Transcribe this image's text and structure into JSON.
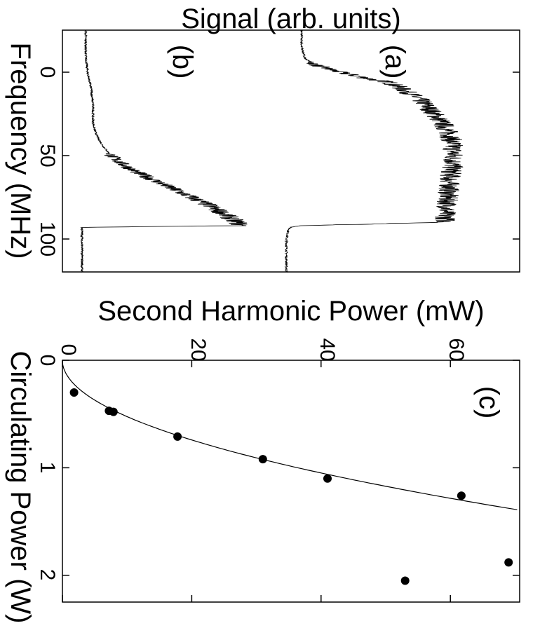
{
  "chart_data": [
    {
      "type": "line",
      "panel_label_a": "(a)",
      "panel_label_b": "(b)",
      "xlabel": "Frequency (MHz)",
      "ylabel": "Signal (arb. units)",
      "xlim": [
        -25,
        120
      ],
      "x_ticks": [
        "0",
        "50",
        "100"
      ],
      "y_ticks_shown": false,
      "series": [
        {
          "label": "(a)",
          "x": [
            -25,
            -15,
            -8,
            -4,
            0,
            2,
            4,
            6,
            8,
            12,
            16,
            20,
            25,
            30,
            35,
            40,
            45,
            50,
            55,
            60,
            65,
            70,
            75,
            80,
            85,
            90,
            92,
            93,
            95,
            100,
            110,
            120
          ],
          "y": [
            0.1,
            0.1,
            0.12,
            0.18,
            0.3,
            0.38,
            0.46,
            0.56,
            0.6,
            0.66,
            0.72,
            0.76,
            0.8,
            0.84,
            0.87,
            0.89,
            0.9,
            0.9,
            0.9,
            0.89,
            0.88,
            0.88,
            0.87,
            0.87,
            0.86,
            0.86,
            0.1,
            0.04,
            0.03,
            0.02,
            0.02,
            0.02
          ]
        },
        {
          "label": "(b)",
          "x": [
            -25,
            -10,
            0,
            10,
            20,
            30,
            35,
            40,
            45,
            50,
            55,
            60,
            65,
            70,
            75,
            80,
            85,
            90,
            92,
            93,
            95,
            100,
            110,
            120
          ],
          "y": [
            0.02,
            0.02,
            0.03,
            0.05,
            0.06,
            0.06,
            0.07,
            0.09,
            0.12,
            0.16,
            0.22,
            0.3,
            0.4,
            0.5,
            0.6,
            0.7,
            0.78,
            0.85,
            0.87,
            0.0,
            0.0,
            0.0,
            0.0,
            0.0
          ]
        }
      ]
    },
    {
      "type": "scatter",
      "panel_label": "(c)",
      "xlabel": "Circulating Power (W)",
      "ylabel": "Second Harmonic Power (mW)",
      "xlim": [
        0,
        2.2
      ],
      "ylim": [
        0,
        70
      ],
      "x_ticks": [
        "0",
        "1",
        "2"
      ],
      "y_ticks": [
        "0",
        "20",
        "40",
        "60"
      ],
      "points": [
        {
          "x": 0.3,
          "y": 1.8
        },
        {
          "x": 0.47,
          "y": 7.2
        },
        {
          "x": 0.48,
          "y": 7.9
        },
        {
          "x": 0.71,
          "y": 17.8
        },
        {
          "x": 0.92,
          "y": 31.0
        },
        {
          "x": 1.1,
          "y": 41.0
        },
        {
          "x": 1.26,
          "y": 61.7
        },
        {
          "x": 1.88,
          "y": 69.0
        },
        {
          "x": 2.05,
          "y": 53.0
        }
      ],
      "fit": {
        "form": "quadratic",
        "coefficient_mW_per_W2": 36.4
      }
    }
  ]
}
